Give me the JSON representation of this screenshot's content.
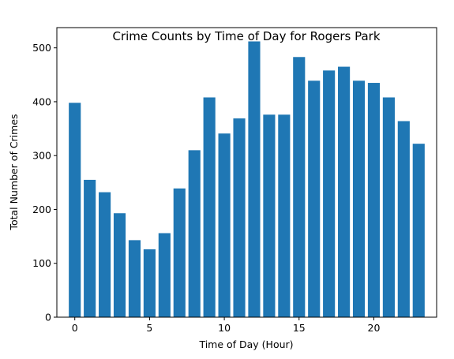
{
  "chart_data": {
    "type": "bar",
    "title": "Crime Counts by Time of Day for Rogers Park",
    "xlabel": "Time of Day (Hour)",
    "ylabel": "Total Number of Crimes",
    "x": [
      0,
      1,
      2,
      3,
      4,
      5,
      6,
      7,
      8,
      9,
      10,
      11,
      12,
      13,
      14,
      15,
      16,
      17,
      18,
      19,
      20,
      21,
      22,
      23
    ],
    "values": [
      398,
      255,
      232,
      193,
      143,
      126,
      156,
      239,
      310,
      408,
      341,
      369,
      512,
      376,
      376,
      483,
      439,
      458,
      465,
      439,
      435,
      408,
      364,
      322
    ],
    "xlim": [
      -1.2,
      24.2
    ],
    "ylim": [
      0,
      537.6
    ],
    "xticks": [
      0,
      5,
      10,
      15,
      20
    ],
    "yticks": [
      0,
      100,
      200,
      300,
      400,
      500
    ],
    "bar_color": "#1f77b4",
    "grid": false,
    "legend": "none"
  }
}
